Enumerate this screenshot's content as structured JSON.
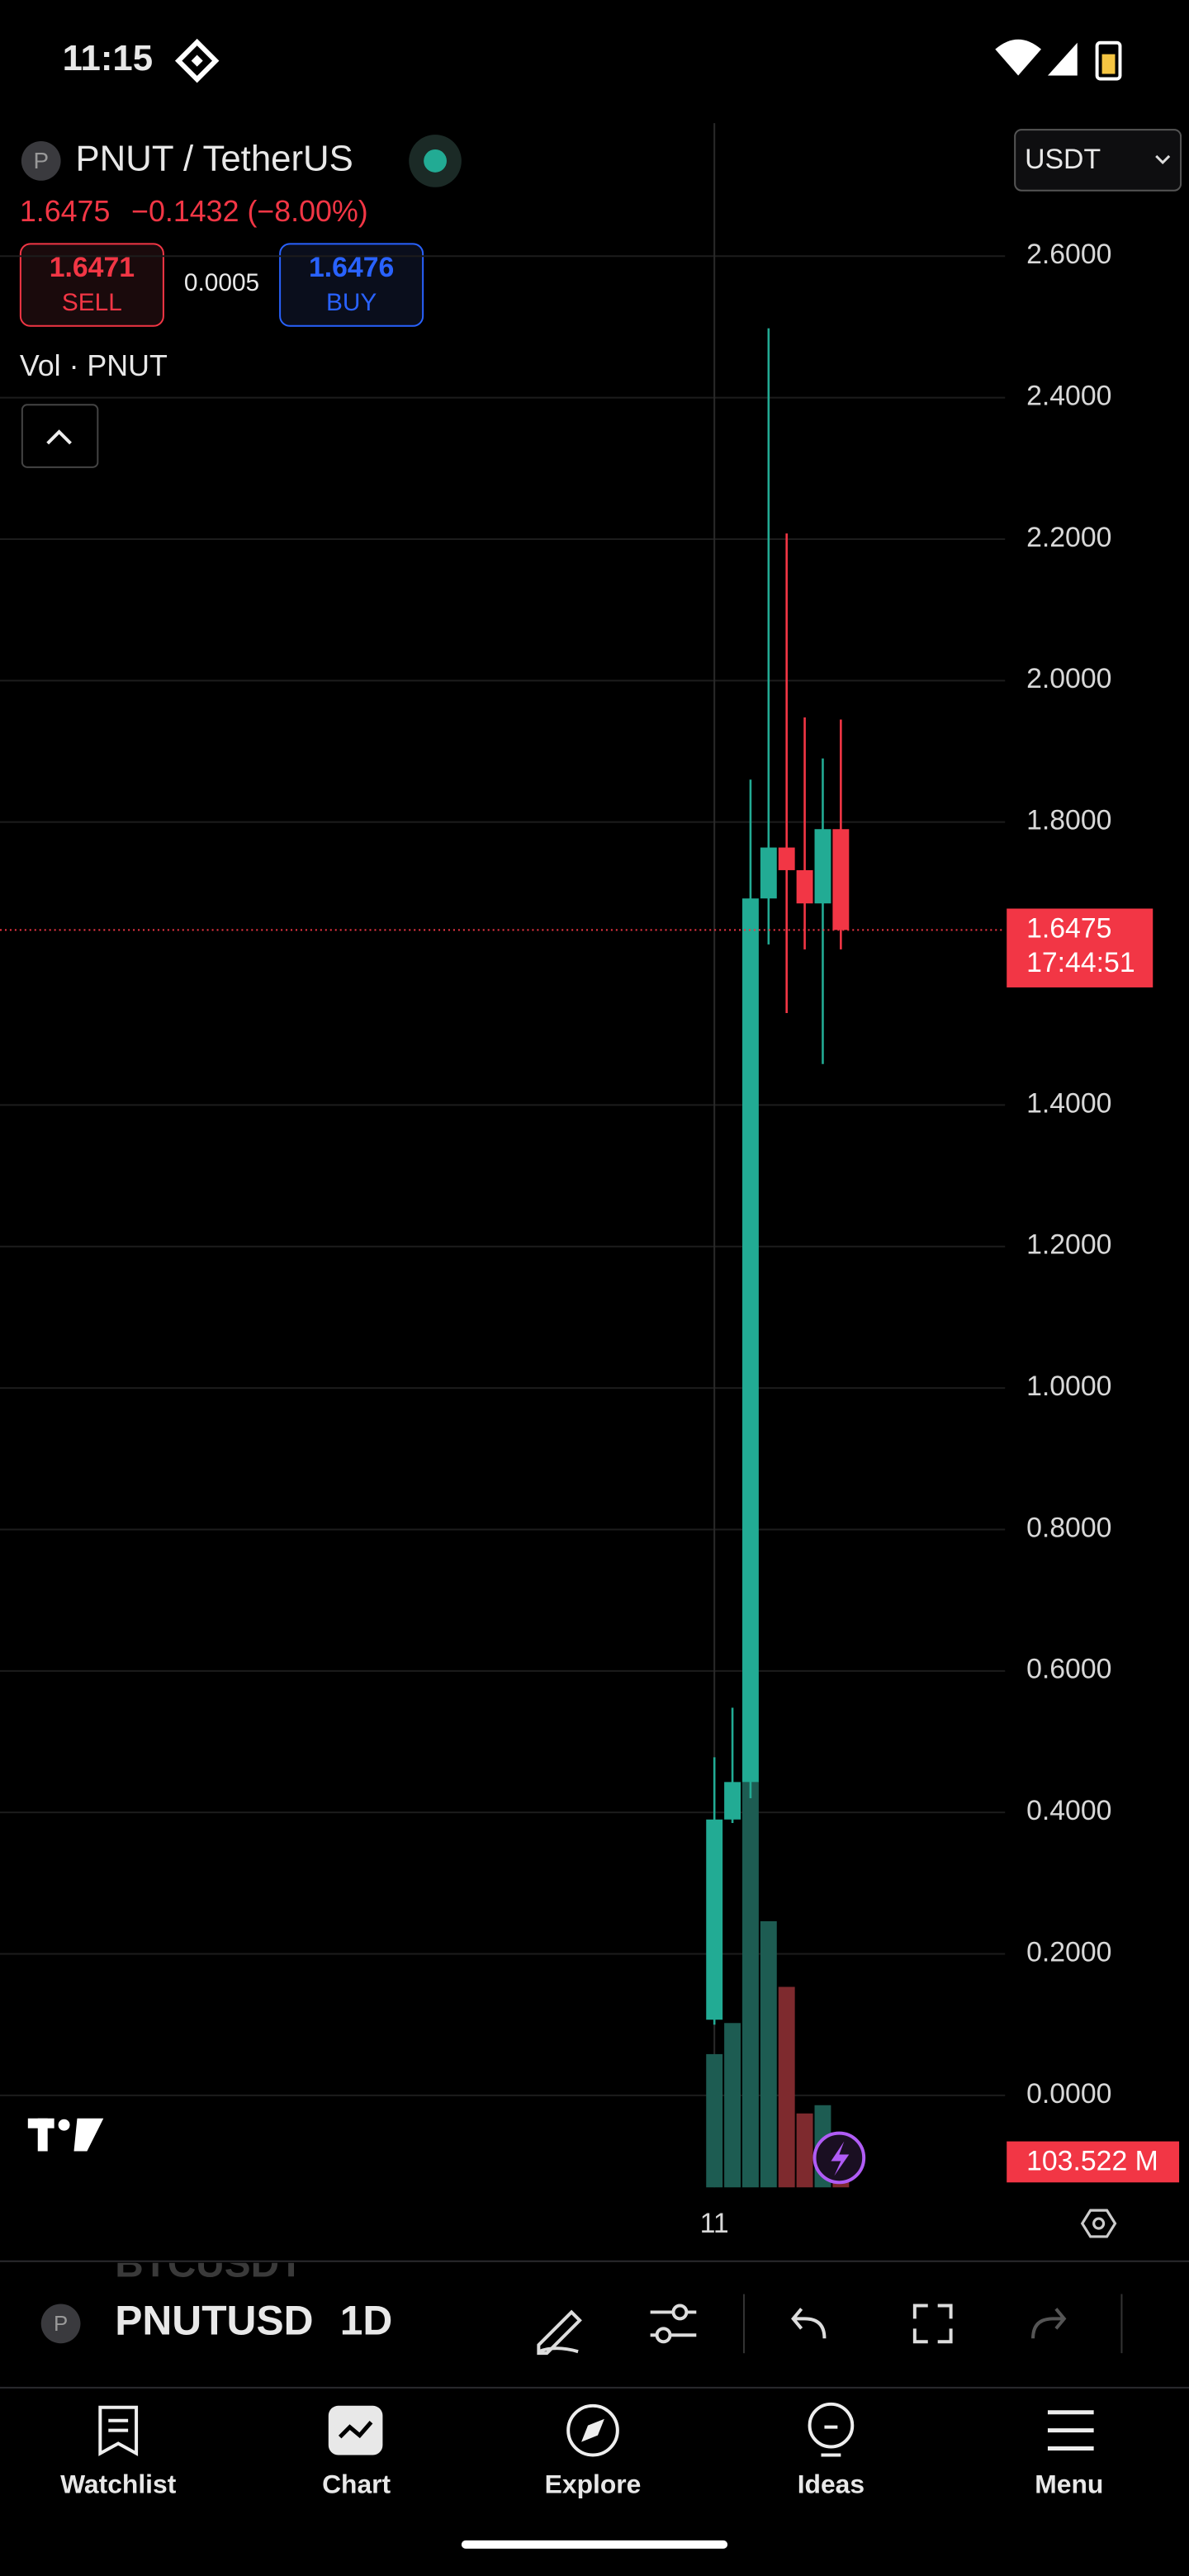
{
  "status_bar": {
    "time": "11:15"
  },
  "header": {
    "symbol": "PNUT / TetherUS",
    "avatar": "P",
    "last_price": "1.6475",
    "change": "−0.1432 (−8.00%)",
    "currency": "USDT",
    "sell_price": "1.6471",
    "sell_label": "SELL",
    "spread": "0.0005",
    "buy_price": "1.6476",
    "buy_label": "BUY",
    "volume_legend": "Vol · PNUT"
  },
  "chart_data": {
    "type": "candlestick",
    "categories": [
      "11",
      null,
      null,
      null,
      null,
      null,
      null,
      null
    ],
    "open": [
      0.107,
      0.39,
      0.443,
      1.692,
      1.764,
      1.732,
      1.685,
      1.79
    ],
    "high": [
      0.478,
      0.548,
      1.86,
      2.498,
      2.208,
      1.948,
      1.89,
      1.945
    ],
    "low": [
      0.1,
      0.385,
      0.42,
      1.627,
      1.53,
      1.62,
      1.458,
      1.62
    ],
    "close": [
      0.39,
      0.443,
      1.692,
      1.764,
      1.732,
      1.685,
      1.79,
      1.6475
    ],
    "volumes": [
      420,
      518,
      1279,
      839,
      632,
      233,
      259,
      103.522
    ],
    "volume_lim": [
      0,
      1346
    ],
    "up_color": "#22ab94",
    "down_color": "#f23645",
    "up_volume_color": "#1d5c52",
    "down_volume_color": "#7e2a2e",
    "ylim": [
      -0.13,
      2.788
    ],
    "yticks": [
      {
        "value": 2.6,
        "label": "2.6000"
      },
      {
        "value": 2.4,
        "label": "2.4000"
      },
      {
        "value": 2.2,
        "label": "2.2000"
      },
      {
        "value": 2.0,
        "label": "2.0000"
      },
      {
        "value": 1.8,
        "label": "1.8000"
      },
      {
        "value": 1.4,
        "label": "1.4000"
      },
      {
        "value": 1.2,
        "label": "1.2000"
      },
      {
        "value": 1.0,
        "label": "1.0000"
      },
      {
        "value": 0.8,
        "label": "0.8000"
      },
      {
        "value": 0.6,
        "label": "0.6000"
      },
      {
        "value": 0.4,
        "label": "0.4000"
      },
      {
        "value": 0.2,
        "label": "0.2000"
      },
      {
        "value": 0,
        "label": "0.0000"
      }
    ],
    "grid": true,
    "current_price": {
      "value": 1.6475,
      "label": "1.6475",
      "countdown": "17:44:51"
    },
    "volume_label": "103.522 M"
  },
  "toolbar": {
    "symbol": "PNUTUSD",
    "interval": "1D",
    "avatar": "P",
    "previous_symbol": "BTCUSDT"
  },
  "nav": [
    "Watchlist",
    "Chart",
    "Explore",
    "Ideas",
    "Menu"
  ]
}
